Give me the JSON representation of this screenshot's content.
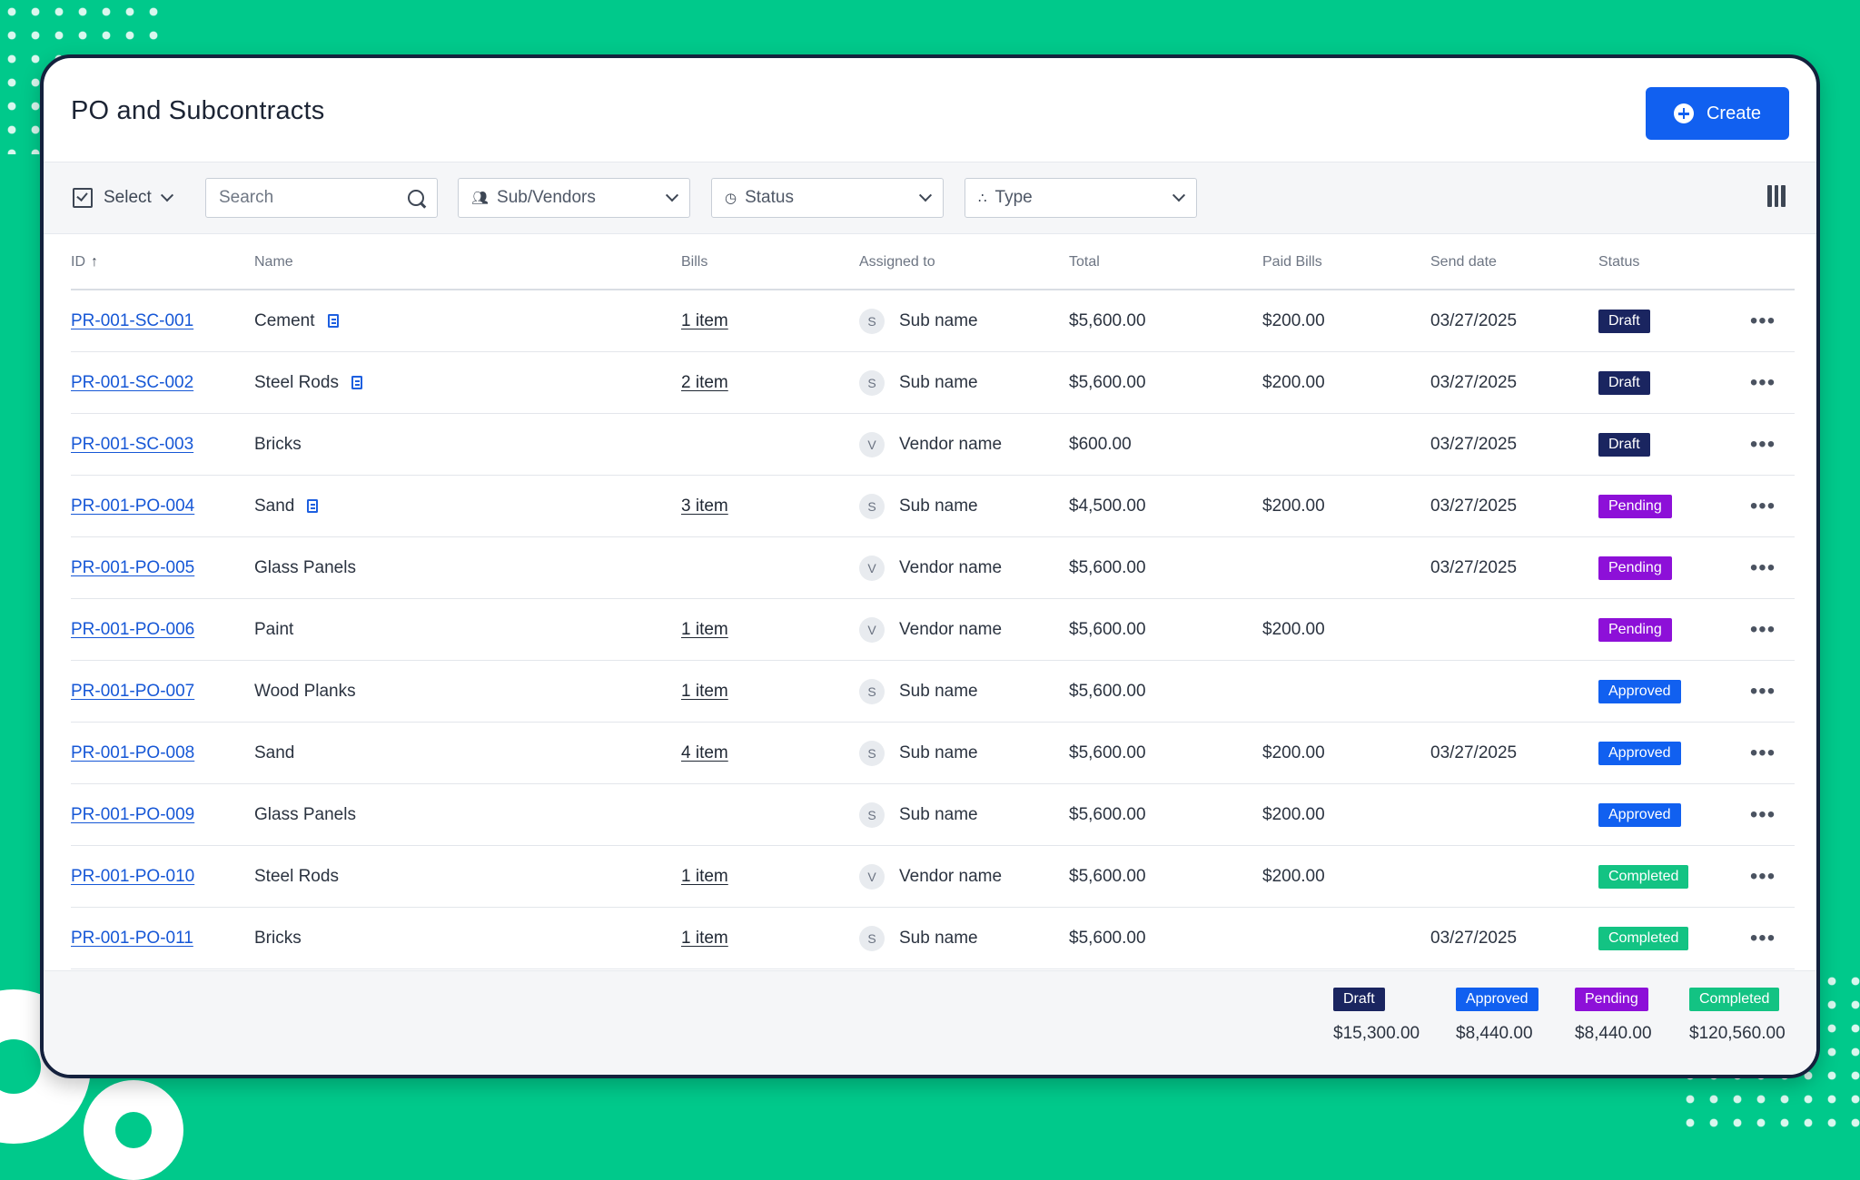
{
  "page": {
    "title": "PO and Subcontracts",
    "create_label": "Create"
  },
  "toolbar": {
    "select_label": "Select",
    "search_placeholder": "Search",
    "filters": {
      "subvendors": "Sub/Vendors",
      "status": "Status",
      "type": "Type"
    }
  },
  "columns": [
    "ID",
    "Name",
    "Bills",
    "Assigned to",
    "Total",
    "Paid Bills",
    "Send date",
    "Status"
  ],
  "colors": {
    "draft": "#1a2560",
    "pending": "#8d10d8",
    "approved": "#1160f0",
    "completed": "#13c383",
    "accent": "#1160f0"
  },
  "rows": [
    {
      "id": "PR-001-SC-001",
      "name": "Cement",
      "doc": true,
      "bills": "1 item",
      "initial": "S",
      "assignee": "Sub name",
      "total": "$5,600.00",
      "paid": "$200.00",
      "date": "03/27/2025",
      "status": "Draft",
      "status_key": "draft"
    },
    {
      "id": "PR-001-SC-002",
      "name": "Steel Rods",
      "doc": true,
      "bills": "2 item",
      "initial": "S",
      "assignee": "Sub name",
      "total": "$5,600.00",
      "paid": "$200.00",
      "date": "03/27/2025",
      "status": "Draft",
      "status_key": "draft"
    },
    {
      "id": "PR-001-SC-003",
      "name": "Bricks",
      "doc": false,
      "bills": "",
      "initial": "V",
      "assignee": "Vendor name",
      "total": "$600.00",
      "paid": "",
      "date": "03/27/2025",
      "status": "Draft",
      "status_key": "draft"
    },
    {
      "id": "PR-001-PO-004",
      "name": "Sand",
      "doc": true,
      "bills": "3 item",
      "initial": "S",
      "assignee": "Sub name",
      "total": "$4,500.00",
      "paid": "$200.00",
      "date": "03/27/2025",
      "status": "Pending",
      "status_key": "pending"
    },
    {
      "id": "PR-001-PO-005",
      "name": "Glass Panels",
      "doc": false,
      "bills": "",
      "initial": "V",
      "assignee": "Vendor name",
      "total": "$5,600.00",
      "paid": "",
      "date": "03/27/2025",
      "status": "Pending",
      "status_key": "pending"
    },
    {
      "id": "PR-001-PO-006",
      "name": "Paint",
      "doc": false,
      "bills": "1 item",
      "initial": "V",
      "assignee": "Vendor name",
      "total": "$5,600.00",
      "paid": "$200.00",
      "date": "",
      "status": "Pending",
      "status_key": "pending"
    },
    {
      "id": "PR-001-PO-007",
      "name": "Wood Planks",
      "doc": false,
      "bills": "1 item",
      "initial": "S",
      "assignee": "Sub name",
      "total": "$5,600.00",
      "paid": "",
      "date": "",
      "status": "Approved",
      "status_key": "approved"
    },
    {
      "id": "PR-001-PO-008",
      "name": "Sand",
      "doc": false,
      "bills": "4 item",
      "initial": "S",
      "assignee": "Sub name",
      "total": "$5,600.00",
      "paid": "$200.00",
      "date": "03/27/2025",
      "status": "Approved",
      "status_key": "approved"
    },
    {
      "id": "PR-001-PO-009",
      "name": "Glass Panels",
      "doc": false,
      "bills": "",
      "initial": "S",
      "assignee": "Sub name",
      "total": "$5,600.00",
      "paid": "$200.00",
      "date": "",
      "status": "Approved",
      "status_key": "approved"
    },
    {
      "id": "PR-001-PO-010",
      "name": "Steel Rods",
      "doc": false,
      "bills": "1 item",
      "initial": "V",
      "assignee": "Vendor name",
      "total": "$5,600.00",
      "paid": "$200.00",
      "date": "",
      "status": "Completed",
      "status_key": "completed"
    },
    {
      "id": "PR-001-PO-011",
      "name": "Bricks",
      "doc": false,
      "bills": "1 item",
      "initial": "S",
      "assignee": "Sub name",
      "total": "$5,600.00",
      "paid": "",
      "date": "03/27/2025",
      "status": "Completed",
      "status_key": "completed"
    }
  ],
  "summary": [
    {
      "label": "Draft",
      "key": "draft",
      "amount": "$15,300.00"
    },
    {
      "label": "Approved",
      "key": "approved",
      "amount": "$8,440.00"
    },
    {
      "label": "Pending",
      "key": "pending",
      "amount": "$8,440.00"
    },
    {
      "label": "Completed",
      "key": "completed",
      "amount": "$120,560.00"
    }
  ]
}
